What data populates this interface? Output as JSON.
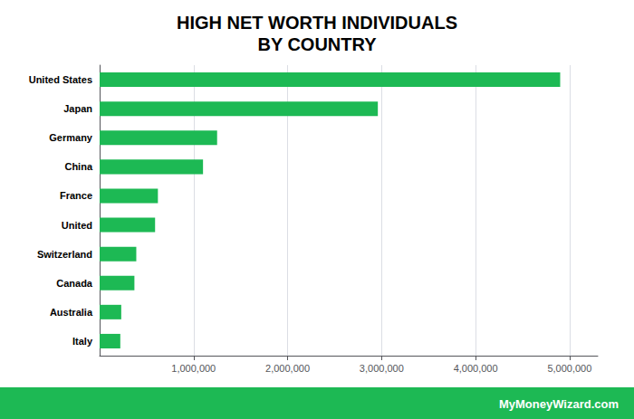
{
  "chart_data": {
    "type": "bar",
    "orientation": "horizontal",
    "title": "HIGH NET WORTH INDIVIDUALS\nBY COUNTRY",
    "annotations": [
      "MyMoneyWizard.com"
    ],
    "categories": [
      "United States",
      "Japan",
      "Germany",
      "China",
      "France",
      "United",
      "Switzerland",
      "Canada",
      "Australia",
      "Italy"
    ],
    "values": [
      4900000,
      2960000,
      1250000,
      1100000,
      620000,
      590000,
      390000,
      370000,
      230000,
      220000
    ],
    "color": "#1db954",
    "xlim": [
      0,
      5300000
    ],
    "xticks": [
      {
        "value": 1000000,
        "label": "1,000,000"
      },
      {
        "value": 2000000,
        "label": "2,000,000"
      },
      {
        "value": 3000000,
        "label": "3,000,000"
      },
      {
        "value": 4000000,
        "label": "4,000,000"
      },
      {
        "value": 5000000,
        "label": "5,000,000"
      }
    ],
    "grid": true
  }
}
